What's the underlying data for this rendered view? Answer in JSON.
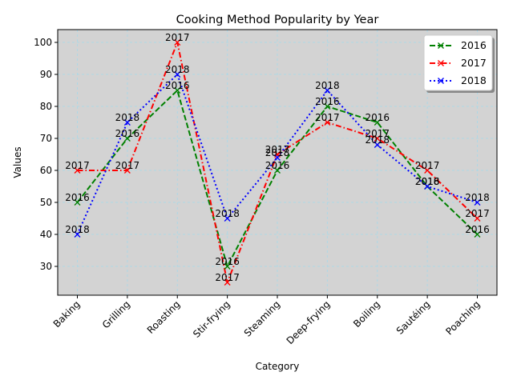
{
  "chart_data": {
    "type": "line",
    "title": "Cooking Method Popularity by Year",
    "xlabel": "Category",
    "ylabel": "Values",
    "categories": [
      "Baking",
      "Grilling",
      "Roasting",
      "Stir-frying",
      "Steaming",
      "Deep-frying",
      "Boiling",
      "Sautéing",
      "Poaching"
    ],
    "yticks": [
      30,
      40,
      50,
      60,
      70,
      80,
      90,
      100
    ],
    "ylim": [
      21,
      104
    ],
    "grid": true,
    "legend_position": "top-right",
    "background_color": "#d3d3d3",
    "grid_color": "#add8e6",
    "series": [
      {
        "name": "2016",
        "color": "#008000",
        "dash": "dashed",
        "marker": "x",
        "values": [
          50,
          70,
          85,
          30,
          60,
          80,
          75,
          55,
          40
        ]
      },
      {
        "name": "2017",
        "color": "#ff0000",
        "dash": "dashdot",
        "marker": "x",
        "values": [
          60,
          60,
          100,
          25,
          65,
          75,
          70,
          60,
          45
        ]
      },
      {
        "name": "2018",
        "color": "#0000ff",
        "dash": "dotted",
        "marker": "x",
        "values": [
          40,
          75,
          90,
          45,
          64,
          85,
          68,
          55,
          50
        ]
      }
    ]
  }
}
